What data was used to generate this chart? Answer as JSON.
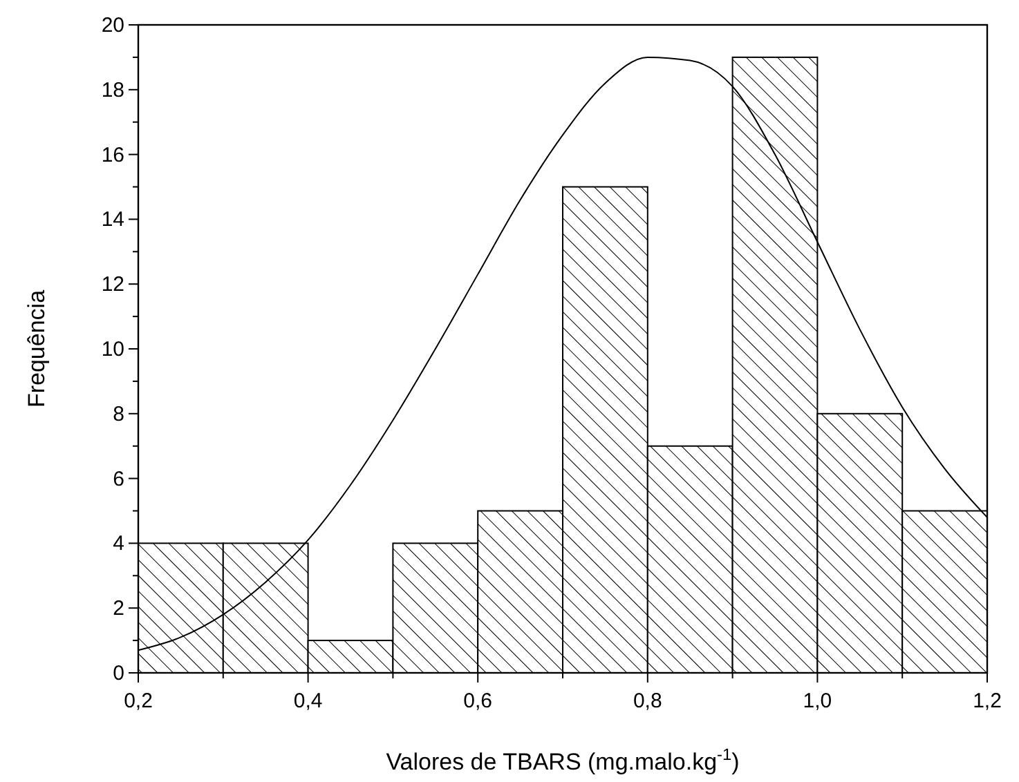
{
  "chart_data": {
    "type": "histogram",
    "xlabel": "Valores de TBARS (mg.malo.kg$^{-1}$)",
    "ylabel": "Frequência",
    "color": "#000000",
    "bins": [
      0.2,
      0.3,
      0.4,
      0.5,
      0.6,
      0.7,
      0.8,
      0.9,
      1.0,
      1.1,
      1.2
    ],
    "values": [
      4,
      4,
      1,
      4,
      5,
      15,
      7,
      19,
      8,
      5
    ],
    "series": [
      {
        "type": "line",
        "color": "#000000",
        "x": [
          0.2,
          0.25,
          0.3,
          0.35,
          0.4,
          0.45,
          0.5,
          0.55,
          0.6,
          0.65,
          0.7,
          0.75,
          0.8,
          0.85,
          0.9,
          0.95,
          1.0,
          1.05,
          1.1,
          1.15,
          1.2
        ],
        "values": [
          0.7,
          1.1,
          1.8,
          2.8,
          4.1,
          5.8,
          7.8,
          10.0,
          12.3,
          14.6,
          16.6,
          18.2,
          19.0,
          18.9,
          18.1,
          16.0,
          13.3,
          10.6,
          8.2,
          6.3,
          4.8
        ]
      }
    ],
    "xlim": [
      0.2,
      1.2
    ],
    "ylim": [
      0,
      20
    ],
    "xticks": [
      {
        "value": 0.2,
        "label": "0,2"
      },
      {
        "value": 0.3,
        "label": null
      },
      {
        "value": 0.4,
        "label": "0,4"
      },
      {
        "value": 0.5,
        "label": null
      },
      {
        "value": 0.6,
        "label": "0,6"
      },
      {
        "value": 0.7,
        "label": null
      },
      {
        "value": 0.8,
        "label": "0,8"
      },
      {
        "value": 0.9,
        "label": null
      },
      {
        "value": 1.0,
        "label": "1,0"
      },
      {
        "value": 1.1,
        "label": null
      },
      {
        "value": 1.2,
        "label": "1,2"
      }
    ],
    "yticks": [
      0,
      {
        "value": 1,
        "label": null
      },
      2,
      {
        "value": 3,
        "label": null
      },
      4,
      {
        "value": 5,
        "label": null
      },
      6,
      {
        "value": 7,
        "label": null
      },
      8,
      {
        "value": 9,
        "label": null
      },
      10,
      {
        "value": 11,
        "label": null
      },
      12,
      {
        "value": 13,
        "label": null
      },
      14,
      {
        "value": 15,
        "label": null
      },
      16,
      {
        "value": 17,
        "label": null
      },
      18,
      {
        "value": 19,
        "label": null
      },
      20
    ],
    "grid": false
  }
}
